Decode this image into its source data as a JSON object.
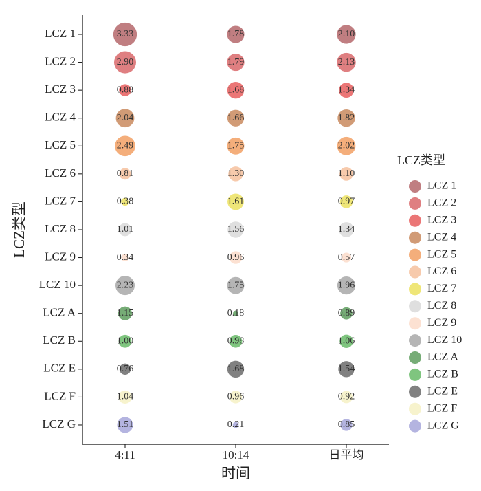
{
  "chart_data": {
    "type": "bubble",
    "xlabel": "时间",
    "ylabel": "LCZ类型",
    "legend_title": "LCZ类型",
    "legend": "right",
    "categories": [
      "4:11",
      "10:14",
      "日平均"
    ],
    "series": [
      {
        "name": "LCZ 1",
        "color": "#b5676b",
        "values": [
          3.33,
          1.78,
          2.1
        ],
        "value_labels": [
          "3.33",
          "1.78",
          "2.10"
        ]
      },
      {
        "name": "LCZ 2",
        "color": "#d9696b",
        "values": [
          2.9,
          1.79,
          2.13
        ],
        "value_labels": [
          "2.90",
          "1.79",
          "2.13"
        ]
      },
      {
        "name": "LCZ 3",
        "color": "#e85e5e",
        "values": [
          0.88,
          1.68,
          1.34
        ],
        "value_labels": [
          "0.88",
          "1.68",
          "1.34"
        ]
      },
      {
        "name": "LCZ 4",
        "color": "#c98a5e",
        "values": [
          2.04,
          1.66,
          1.82
        ],
        "value_labels": [
          "2.04",
          "1.66",
          "1.82"
        ]
      },
      {
        "name": "LCZ 5",
        "color": "#f2a064",
        "values": [
          2.49,
          1.75,
          2.02
        ],
        "value_labels": [
          "2.49",
          "1.75",
          "2.02"
        ]
      },
      {
        "name": "LCZ 6",
        "color": "#f6c19e",
        "values": [
          0.81,
          1.3,
          1.1
        ],
        "value_labels": [
          "0.81",
          "1.30",
          "1.10"
        ]
      },
      {
        "name": "LCZ 7",
        "color": "#ece260",
        "values": [
          0.38,
          1.61,
          0.97
        ],
        "value_labels": [
          "0.38",
          "1.61",
          "0.97"
        ]
      },
      {
        "name": "LCZ 8",
        "color": "#d9d9d9",
        "values": [
          1.01,
          1.56,
          1.34
        ],
        "value_labels": [
          "1.01",
          "1.56",
          "1.34"
        ]
      },
      {
        "name": "LCZ 9",
        "color": "#fbdcca",
        "values": [
          0.34,
          0.96,
          0.57
        ],
        "value_labels": [
          "0.34",
          "0.96",
          "0.57"
        ]
      },
      {
        "name": "LCZ 10",
        "color": "#a8a8a8",
        "values": [
          2.23,
          1.75,
          1.96
        ],
        "value_labels": [
          "2.23",
          "1.75",
          "1.96"
        ]
      },
      {
        "name": "LCZ A",
        "color": "#5e9e5e",
        "values": [
          1.15,
          0.18,
          0.89
        ],
        "value_labels": [
          "1.15",
          "0.18",
          "0.89"
        ]
      },
      {
        "name": "LCZ B",
        "color": "#68bb68",
        "values": [
          1.0,
          0.98,
          1.06
        ],
        "value_labels": [
          "1.00",
          "0.98",
          "1.06"
        ]
      },
      {
        "name": "LCZ E",
        "color": "#6b6b6b",
        "values": [
          0.76,
          1.68,
          1.54
        ],
        "value_labels": [
          "0.76",
          "1.68",
          "1.54"
        ]
      },
      {
        "name": "LCZ F",
        "color": "#f6f1c4",
        "values": [
          1.04,
          0.96,
          0.92
        ],
        "value_labels": [
          "1.04",
          "0.96",
          "0.92"
        ]
      },
      {
        "name": "LCZ G",
        "color": "#a7a7da",
        "values": [
          1.51,
          0.21,
          0.85
        ],
        "value_labels": [
          "1.51",
          "0.21",
          "0.85"
        ]
      }
    ]
  }
}
